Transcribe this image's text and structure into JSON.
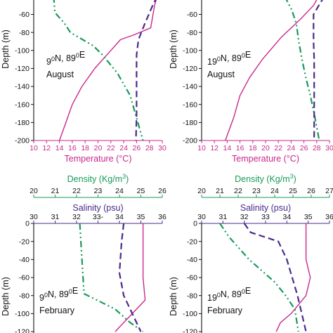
{
  "colors": {
    "temperature": "#c8288c",
    "density": "#1a9a5a",
    "salinity": "#4b2b8c",
    "axis": "#111111"
  },
  "chart_data": [
    {
      "type": "line",
      "panel": "top-left",
      "annotation": {
        "location": "9⁰N, 89⁰E",
        "month": "August"
      },
      "ylabel": "Depth (m)",
      "ylim": [
        -200,
        -40
      ],
      "yticks": [
        "-60",
        "-80",
        "-100",
        "-120",
        "-140",
        "-160",
        "-180",
        "-200"
      ],
      "x_axis": {
        "label": "Temperature (°C)",
        "ticks": [
          "10",
          "12",
          "14",
          "16",
          "18",
          "20",
          "22",
          "24",
          "26",
          "28",
          "30"
        ],
        "range": [
          10,
          30
        ]
      },
      "series": [
        {
          "variable": "temperature",
          "style": "solid",
          "points": [
            [
              29.2,
              -40
            ],
            [
              28.8,
              -50
            ],
            [
              28.2,
              -75
            ],
            [
              25.5,
              -83
            ],
            [
              23.5,
              -88
            ],
            [
              22.0,
              -100
            ],
            [
              19.5,
              -120
            ],
            [
              17.5,
              -140
            ],
            [
              16.0,
              -160
            ],
            [
              15.0,
              -180
            ],
            [
              14.0,
              -200
            ]
          ]
        },
        {
          "variable": "density",
          "style": "dash-dot",
          "points": [
            [
              13.1,
              -40
            ],
            [
              13.3,
              -58
            ],
            [
              14.8,
              -70
            ],
            [
              15.7,
              -80
            ],
            [
              19.3,
              -95
            ],
            [
              20.7,
              -105
            ],
            [
              23.0,
              -125
            ],
            [
              25.0,
              -150
            ],
            [
              26.0,
              -175
            ],
            [
              27.0,
              -200
            ]
          ]
        },
        {
          "variable": "salinity",
          "style": "dashed",
          "points": [
            [
              29.2,
              -40
            ],
            [
              28.5,
              -50
            ],
            [
              27.3,
              -70
            ],
            [
              26.3,
              -88
            ],
            [
              26.0,
              -105
            ],
            [
              26.0,
              -140
            ],
            [
              26.0,
              -170
            ],
            [
              25.9,
              -200
            ]
          ]
        }
      ]
    },
    {
      "type": "line",
      "panel": "top-right",
      "annotation": {
        "location": "19⁰N, 89⁰E",
        "month": "August"
      },
      "ylabel": "Depth (m)",
      "ylim": [
        -200,
        -40
      ],
      "yticks": [
        "-60",
        "-80",
        "-100",
        "-120",
        "-140",
        "-160",
        "-180",
        "-200"
      ],
      "x_axis": {
        "label": "Temperature (°C)",
        "ticks": [
          "10",
          "12",
          "14",
          "16",
          "18",
          "20",
          "22",
          "24",
          "26",
          "28",
          "30"
        ],
        "range": [
          10,
          30
        ]
      },
      "series": [
        {
          "variable": "temperature",
          "style": "solid",
          "points": [
            [
              28.3,
              -40
            ],
            [
              27.5,
              -50
            ],
            [
              25.5,
              -65
            ],
            [
              22.5,
              -85
            ],
            [
              19.5,
              -110
            ],
            [
              17.5,
              -130
            ],
            [
              16.0,
              -150
            ],
            [
              15.0,
              -175
            ],
            [
              13.7,
              -200
            ]
          ]
        },
        {
          "variable": "density",
          "style": "dash-dot",
          "points": [
            [
              23.0,
              -40
            ],
            [
              24.1,
              -55
            ],
            [
              24.8,
              -70
            ],
            [
              25.2,
              -90
            ],
            [
              25.7,
              -110
            ],
            [
              26.3,
              -130
            ],
            [
              27.0,
              -150
            ],
            [
              27.6,
              -170
            ],
            [
              28.4,
              -200
            ]
          ]
        },
        {
          "variable": "salinity",
          "style": "dashed",
          "points": [
            [
              29.2,
              -40
            ],
            [
              28.5,
              -48
            ],
            [
              27.5,
              -60
            ],
            [
              27.5,
              -90
            ],
            [
              27.6,
              -110
            ],
            [
              27.6,
              -140
            ],
            [
              27.6,
              -160
            ],
            [
              27.6,
              -200
            ]
          ]
        }
      ]
    },
    {
      "type": "line",
      "panel": "bottom-left",
      "annotation": {
        "location": "9⁰N, 89⁰E",
        "month": "February"
      },
      "ylabel": "Depth (m)",
      "ylim": [
        -120,
        0
      ],
      "yticks": [
        "0",
        "-20",
        "-40",
        "-60",
        "-80",
        "-100",
        "-120"
      ],
      "x_axes": [
        {
          "label": "Density (Kg/m3)",
          "ticks": [
            "20",
            "21",
            "22",
            "23",
            "24",
            "25",
            "26"
          ],
          "range": [
            20,
            26
          ]
        },
        {
          "label": "Salinity (psu)",
          "ticks": [
            "30",
            "31",
            "32",
            "33-",
            "34",
            "35",
            "36"
          ],
          "range": [
            30,
            36
          ]
        }
      ],
      "series": [
        {
          "variable": "temperature",
          "style": "solid",
          "points": [
            [
              35.1,
              0
            ],
            [
              35.1,
              -60
            ],
            [
              35.2,
              -85
            ],
            [
              34.6,
              -100
            ],
            [
              33.8,
              -120
            ]
          ]
        },
        {
          "variable": "density",
          "style": "dash-dot",
          "points": [
            [
              22.15,
              0
            ],
            [
              22.2,
              -20
            ],
            [
              22.3,
              -60
            ],
            [
              22.35,
              -78
            ],
            [
              23.8,
              -95
            ],
            [
              24.5,
              -110
            ],
            [
              25.1,
              -120
            ]
          ]
        },
        {
          "variable": "salinity",
          "style": "dashed",
          "points": [
            [
              34.2,
              0
            ],
            [
              34.1,
              -20
            ],
            [
              34.0,
              -55
            ],
            [
              34.2,
              -80
            ],
            [
              34.6,
              -100
            ],
            [
              35.0,
              -120
            ]
          ]
        }
      ]
    },
    {
      "type": "line",
      "panel": "bottom-right",
      "annotation": {
        "location": "19⁰N, 89⁰E",
        "month": "February"
      },
      "ylabel": "Depth (m)",
      "ylim": [
        -120,
        0
      ],
      "yticks": [
        "0",
        "-20",
        "-40",
        "-60",
        "-80",
        "-100",
        "-120"
      ],
      "x_axes": [
        {
          "label": "Density (Kg/m3)",
          "ticks": [
            "20",
            "21",
            "22",
            "23",
            "24",
            "25",
            "26",
            "27"
          ],
          "range": [
            20,
            27
          ]
        },
        {
          "label": "Salinity (psu)",
          "ticks": [
            "30",
            "31",
            "32",
            "33",
            "34",
            "35",
            "36"
          ],
          "range": [
            30,
            36
          ]
        }
      ],
      "series": [
        {
          "variable": "temperature",
          "style": "solid",
          "points": [
            [
              34.9,
              0
            ],
            [
              34.9,
              -40
            ],
            [
              35.1,
              -60
            ],
            [
              34.9,
              -80
            ],
            [
              34.2,
              -100
            ],
            [
              33.7,
              -110
            ],
            [
              33.5,
              -120
            ]
          ]
        },
        {
          "variable": "density",
          "style": "dash-dot",
          "points": [
            [
              21.0,
              0
            ],
            [
              21.5,
              -15
            ],
            [
              22.6,
              -40
            ],
            [
              24.0,
              -65
            ],
            [
              24.6,
              -80
            ],
            [
              25.1,
              -95
            ],
            [
              25.3,
              -120
            ]
          ]
        },
        {
          "variable": "salinity",
          "style": "dashed",
          "points": [
            [
              32.0,
              0
            ],
            [
              32.3,
              -10
            ],
            [
              33.6,
              -20
            ],
            [
              34.0,
              -40
            ],
            [
              34.5,
              -80
            ],
            [
              34.9,
              -120
            ]
          ]
        }
      ]
    }
  ]
}
